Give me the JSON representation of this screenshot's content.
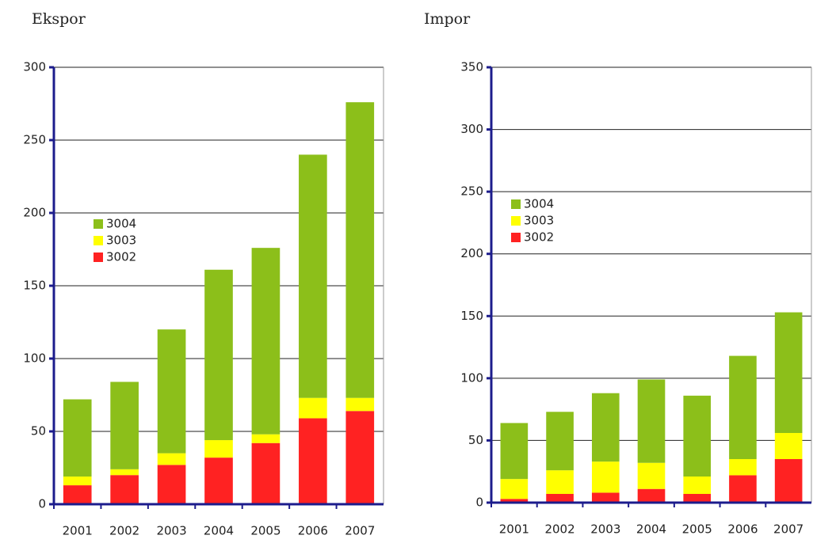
{
  "chart_data": [
    {
      "type": "stacked-bar",
      "title": "Ekspor",
      "categories": [
        "2001",
        "2002",
        "2003",
        "2004",
        "2005",
        "2006",
        "2007"
      ],
      "series": [
        {
          "name": "3002",
          "color": "#ff2222",
          "values": [
            13,
            20,
            27,
            32,
            42,
            59,
            64
          ]
        },
        {
          "name": "3003",
          "color": "#ffff00",
          "values": [
            6,
            4,
            8,
            12,
            6,
            14,
            9
          ]
        },
        {
          "name": "3004",
          "color": "#8cbf1a",
          "values": [
            53,
            60,
            85,
            117,
            128,
            167,
            203
          ]
        }
      ],
      "ylim": [
        0,
        300
      ],
      "yticks": [
        0,
        50,
        100,
        150,
        200,
        250,
        300
      ],
      "grid": true,
      "legend": "left"
    },
    {
      "type": "stacked-bar",
      "title": "Impor",
      "categories": [
        "2001",
        "2002",
        "2003",
        "2004",
        "2005",
        "2006",
        "2007"
      ],
      "series": [
        {
          "name": "3002",
          "color": "#ff2222",
          "values": [
            3,
            7,
            8,
            11,
            7,
            22,
            35
          ]
        },
        {
          "name": "3003",
          "color": "#ffff00",
          "values": [
            16,
            19,
            25,
            21,
            14,
            13,
            21
          ]
        },
        {
          "name": "3004",
          "color": "#8cbf1a",
          "values": [
            45,
            47,
            55,
            67,
            65,
            83,
            97
          ]
        }
      ],
      "ylim": [
        0,
        350
      ],
      "yticks": [
        0,
        50,
        100,
        150,
        200,
        250,
        300,
        350
      ],
      "grid": true,
      "legend": "left"
    }
  ]
}
